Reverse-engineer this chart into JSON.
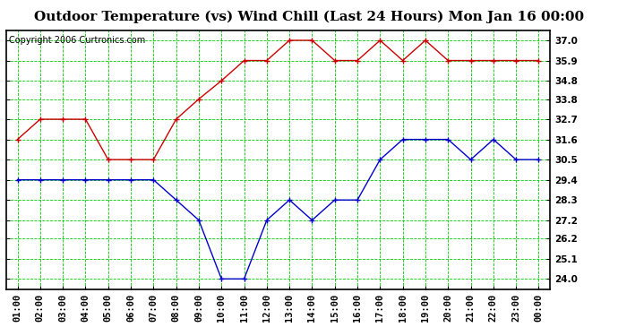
{
  "title": "Outdoor Temperature (vs) Wind Chill (Last 24 Hours) Mon Jan 16 00:00",
  "copyright": "Copyright 2006 Curtronics.com",
  "x_labels": [
    "01:00",
    "02:00",
    "03:00",
    "04:00",
    "05:00",
    "06:00",
    "07:00",
    "08:00",
    "09:00",
    "10:00",
    "11:00",
    "12:00",
    "13:00",
    "14:00",
    "15:00",
    "16:00",
    "17:00",
    "18:00",
    "19:00",
    "20:00",
    "21:00",
    "22:00",
    "23:00",
    "00:00"
  ],
  "y_ticks": [
    24.0,
    25.1,
    26.2,
    27.2,
    28.3,
    29.4,
    30.5,
    31.6,
    32.7,
    33.8,
    34.8,
    35.9,
    37.0
  ],
  "ylim": [
    23.45,
    37.55
  ],
  "red_data": [
    31.6,
    32.7,
    32.7,
    32.7,
    30.5,
    30.5,
    30.5,
    32.7,
    33.8,
    34.8,
    35.9,
    35.9,
    37.0,
    37.0,
    35.9,
    35.9,
    37.0,
    35.9,
    37.0,
    35.9,
    35.9,
    35.9,
    35.9,
    35.9
  ],
  "blue_data": [
    29.4,
    29.4,
    29.4,
    29.4,
    29.4,
    29.4,
    29.4,
    28.3,
    27.2,
    24.0,
    24.0,
    27.2,
    28.3,
    27.2,
    28.3,
    28.3,
    30.5,
    31.6,
    31.6,
    31.6,
    30.5,
    31.6,
    30.5,
    30.5
  ],
  "bg_color": "#ffffff",
  "plot_bg_color": "#ffffff",
  "grid_color": "#00cc00",
  "line_color_red": "#cc0000",
  "line_color_blue": "#0000cc",
  "title_fontsize": 11,
  "copyright_fontsize": 7,
  "tick_fontsize": 7.5
}
